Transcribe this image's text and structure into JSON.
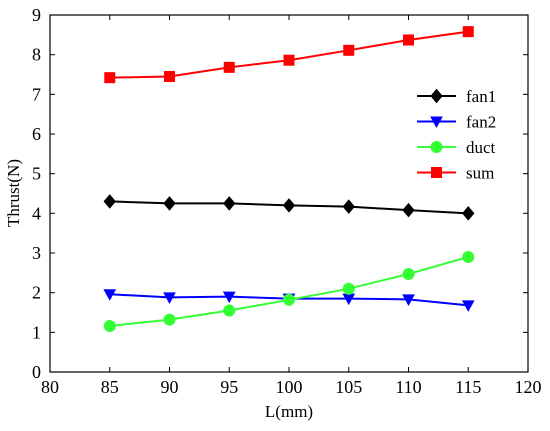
{
  "chart_data": {
    "type": "line",
    "xlabel": "L(mm)",
    "ylabel": "Thrust(N)",
    "xlim": [
      80,
      120
    ],
    "ylim": [
      0,
      9
    ],
    "xticks": [
      80,
      85,
      90,
      95,
      100,
      105,
      110,
      115,
      120
    ],
    "yticks": [
      0,
      1,
      2,
      3,
      4,
      5,
      6,
      7,
      8,
      9
    ],
    "grid": false,
    "legend_position": "right",
    "x": [
      85,
      90,
      95,
      100,
      105,
      110,
      115
    ],
    "series": [
      {
        "name": "fan1",
        "marker": "diamond",
        "color": "#000000",
        "values": [
          4.3,
          4.25,
          4.25,
          4.2,
          4.17,
          4.08,
          4.0
        ]
      },
      {
        "name": "fan2",
        "marker": "triangle-down",
        "color": "#0000ff",
        "values": [
          1.96,
          1.88,
          1.9,
          1.85,
          1.85,
          1.83,
          1.68
        ]
      },
      {
        "name": "duct",
        "marker": "circle",
        "color": "#33ff33",
        "values": [
          1.16,
          1.32,
          1.55,
          1.82,
          2.1,
          2.47,
          2.9
        ]
      },
      {
        "name": "sum",
        "marker": "square",
        "color": "#ff0000",
        "values": [
          7.42,
          7.45,
          7.68,
          7.86,
          8.11,
          8.37,
          8.58
        ]
      }
    ]
  }
}
